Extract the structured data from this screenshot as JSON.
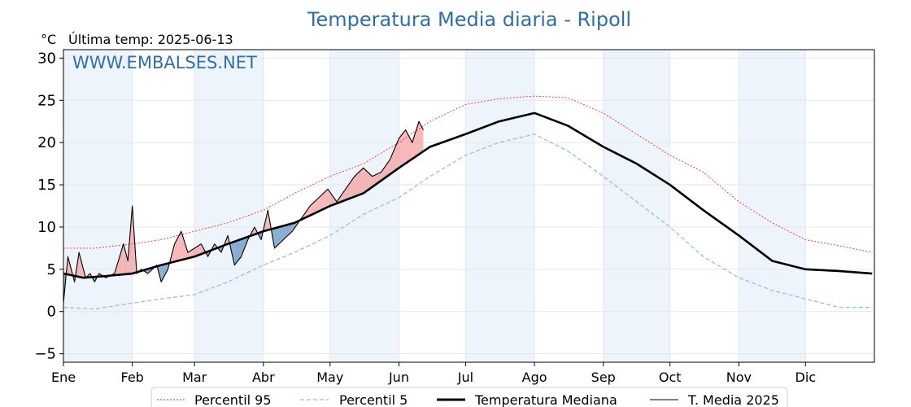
{
  "chart_data": {
    "type": "line",
    "title": "Temperatura Media diaria - Ripoll",
    "unit_label": "°C",
    "last_temp_label": "Última temp: 2025-06-13",
    "watermark": "WWW.EMBALSES.NET",
    "ylim": [
      -6,
      31
    ],
    "yticks": [
      -5,
      0,
      5,
      10,
      15,
      20,
      25,
      30
    ],
    "ytick_labels": [
      "−5",
      "0",
      "5",
      "10",
      "15",
      "20",
      "25",
      "30"
    ],
    "xlim": [
      1,
      366
    ],
    "months": [
      {
        "label": "Ene",
        "start": 1,
        "end": 32
      },
      {
        "label": "Feb",
        "start": 32,
        "end": 60
      },
      {
        "label": "Mar",
        "start": 60,
        "end": 91
      },
      {
        "label": "Abr",
        "start": 91,
        "end": 121
      },
      {
        "label": "May",
        "start": 121,
        "end": 152
      },
      {
        "label": "Jun",
        "start": 152,
        "end": 182
      },
      {
        "label": "Jul",
        "start": 182,
        "end": 213
      },
      {
        "label": "Ago",
        "start": 213,
        "end": 244
      },
      {
        "label": "Sep",
        "start": 244,
        "end": 274
      },
      {
        "label": "Oct",
        "start": 274,
        "end": 305
      },
      {
        "label": "Nov",
        "start": 305,
        "end": 335
      },
      {
        "label": "Dic",
        "start": 335,
        "end": 366
      }
    ],
    "grid": true,
    "legend_position": "bottom",
    "series": [
      {
        "name": "Percentil 95",
        "color": "#e8302c",
        "style": "dotted",
        "x": [
          1,
          15,
          32,
          45,
          60,
          75,
          91,
          105,
          121,
          136,
          152,
          166,
          182,
          197,
          213,
          228,
          244,
          259,
          274,
          289,
          305,
          320,
          335,
          350,
          365
        ],
        "y": [
          7.5,
          7.5,
          8.0,
          8.5,
          9.5,
          10.5,
          12.0,
          14.0,
          16.0,
          17.5,
          20.0,
          22.5,
          24.5,
          25.2,
          25.5,
          25.3,
          23.5,
          21.0,
          18.5,
          16.5,
          13.0,
          10.5,
          8.5,
          7.8,
          7.0
        ]
      },
      {
        "name": "Percentil 5",
        "color": "#8fc2dc",
        "style": "dashed",
        "x": [
          1,
          15,
          32,
          45,
          60,
          75,
          91,
          105,
          121,
          136,
          152,
          166,
          182,
          197,
          213,
          228,
          244,
          259,
          274,
          289,
          305,
          320,
          335,
          350,
          365
        ],
        "y": [
          0.5,
          0.3,
          1.0,
          1.5,
          2.0,
          3.5,
          5.5,
          7.0,
          9.0,
          11.5,
          13.5,
          16.0,
          18.5,
          20.0,
          21.0,
          19.0,
          16.0,
          13.0,
          10.0,
          6.5,
          4.0,
          2.5,
          1.5,
          0.5,
          0.5
        ]
      },
      {
        "name": "Temperatura Mediana",
        "color": "#000000",
        "style": "thick",
        "x": [
          1,
          10,
          20,
          32,
          45,
          60,
          75,
          91,
          105,
          121,
          136,
          152,
          166,
          182,
          197,
          213,
          228,
          244,
          259,
          274,
          289,
          305,
          320,
          335,
          350,
          365
        ],
        "y": [
          4.5,
          4.0,
          4.2,
          4.5,
          5.5,
          6.5,
          8.0,
          9.5,
          10.5,
          12.5,
          14.0,
          17.0,
          19.5,
          21.0,
          22.5,
          23.5,
          22.0,
          19.5,
          17.5,
          15.0,
          12.0,
          9.0,
          6.0,
          5.0,
          4.8,
          4.5
        ]
      },
      {
        "name": "T. Media 2025",
        "color": "#000000",
        "style": "thin",
        "x": [
          1,
          3,
          6,
          8,
          11,
          13,
          15,
          17,
          20,
          24,
          28,
          30,
          32,
          34,
          36,
          39,
          41,
          43,
          45,
          48,
          51,
          54,
          57,
          60,
          63,
          66,
          69,
          72,
          75,
          78,
          81,
          84,
          87,
          90,
          93,
          96,
          100,
          104,
          108,
          112,
          116,
          120,
          124,
          128,
          132,
          136,
          140,
          144,
          148,
          152,
          155,
          158,
          161,
          163
        ],
        "y": [
          1.0,
          6.5,
          3.5,
          7.0,
          4.0,
          4.5,
          3.5,
          4.5,
          4.0,
          4.5,
          8.0,
          6.0,
          12.5,
          4.5,
          5.0,
          4.5,
          5.0,
          5.5,
          3.5,
          5.0,
          8.0,
          9.5,
          7.0,
          7.5,
          8.0,
          6.5,
          8.0,
          7.0,
          9.0,
          5.5,
          6.5,
          8.5,
          10.0,
          8.5,
          12.0,
          7.5,
          8.5,
          9.5,
          11.0,
          12.5,
          13.5,
          14.5,
          13.0,
          14.5,
          16.0,
          17.0,
          16.0,
          16.5,
          18.0,
          20.5,
          21.5,
          20.0,
          22.5,
          21.5
        ]
      }
    ]
  }
}
